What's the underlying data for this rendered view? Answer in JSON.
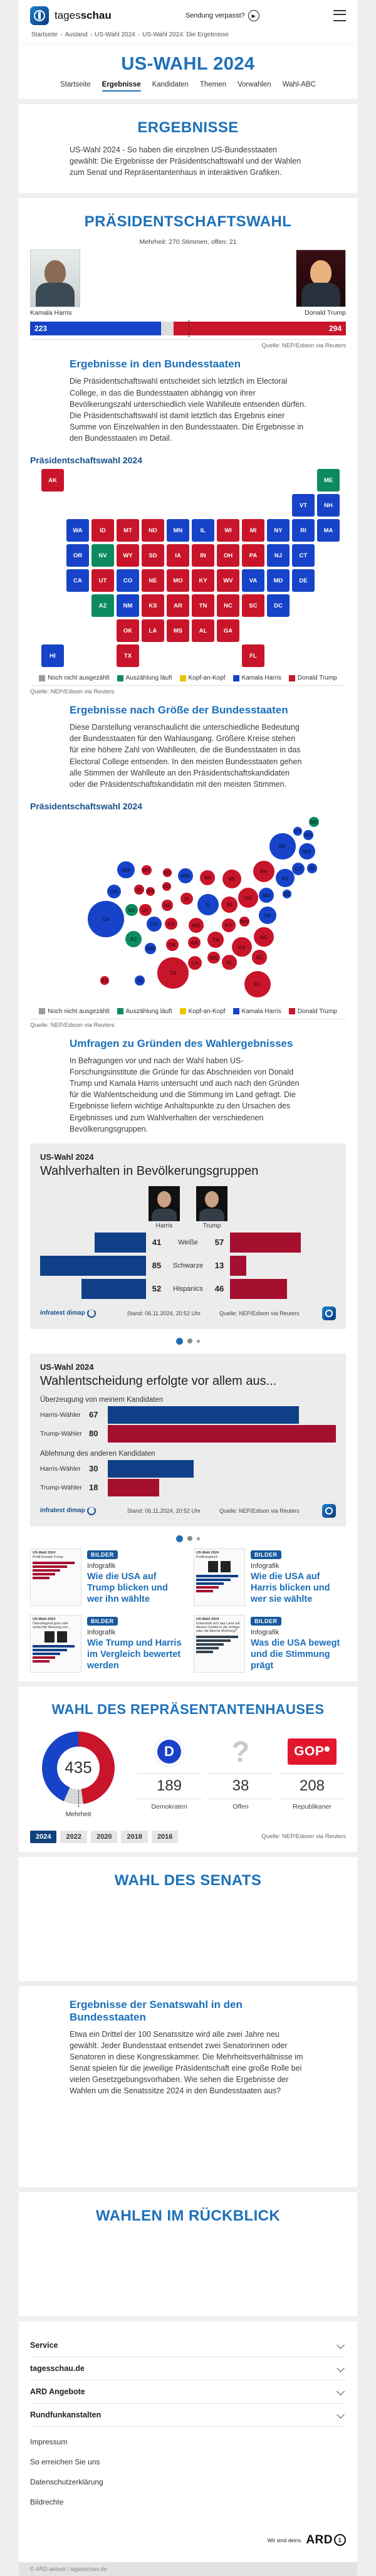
{
  "header": {
    "brand_regular": "tages",
    "brand_bold": "schau",
    "missed_show": "Sendung verpasst?",
    "breadcrumb": [
      "Startseite",
      "Ausland",
      "US-Wahl 2024",
      "US-Wahl 2024: Die Ergebnisse"
    ],
    "page_title": "US-WAHL 2024",
    "tabs": [
      {
        "label": "Startseite",
        "active": false
      },
      {
        "label": "Ergebnisse",
        "active": true
      },
      {
        "label": "Kandidaten",
        "active": false
      },
      {
        "label": "Themen",
        "active": false
      },
      {
        "label": "Vorwahlen",
        "active": false
      },
      {
        "label": "Wahl-ABC",
        "active": false
      }
    ]
  },
  "colors": {
    "harris_blue": "#1643c8",
    "trump_red": "#c8152a",
    "counting_green": "#0d8a60",
    "tossup_yellow": "#ecc500",
    "open_gray": "#9b9b9b",
    "open_segment": "#dcdcdc",
    "info_navy": "#0f3f87",
    "info_dark_red": "#a50f2e",
    "dem_blue": "#1a41c8",
    "gop_red": "#e2172c"
  },
  "results_intro": {
    "title": "ERGEBNISSE",
    "text": "US-Wahl 2024 - So haben die einzelnen US-Bundesstaaten gewählt: Die Ergebnisse der Präsidentschaftswahl und der Wahlen zum Senat und Repräsentantenhaus in interaktiven Grafiken."
  },
  "president": {
    "title": "PRÄSIDENTSCHAFTSWAHL",
    "majority_note": "Mehrheit: 270 Stimmen, offen: 21",
    "harris_name": "Kamala Harris",
    "trump_name": "Donald Trump",
    "source": "Quelle: NEP/Edison via Reuters"
  },
  "states_section": {
    "title": "Ergebnisse in den Bundesstaaten",
    "text": "Die Präsidentschaftswahl entscheidet sich letztlich im Electoral College, in das die Bundesstaaten abhängig von ihrer Bevölkerungszahl unterschiedlich viele Wahlleute entsenden dürfen. Die Präsidentschaftswahl ist damit letztlich das Ergebnis einer Summe von Einzelwahlen in den Bundesstaaten. Die Ergebnisse in den Bundesstaaten im Detail.",
    "chart_title": "Präsidentschaftswahl 2024",
    "source": "Quelle: NEP/Edison via Reuters"
  },
  "cartogram_section": {
    "title": "Ergebnisse nach Größe der Bundesstaaten",
    "text": "Diese Darstellung veranschaulicht die unterschiedliche Bedeutung der Bundesstaaten für den Wahlausgang. Größere Kreise stehen für eine höhere Zahl von Wahlleuten, die die Bundesstaaten in das Electoral College entsenden. In den meisten Bundesstaaten gehen alle Stimmen der Wahlleute an den Präsidentschaftskandidaten oder die Präsidentschaftskandidatin mit den meisten Stimmen.",
    "chart_title": "Präsidentschaftswahl 2024",
    "source": "Quelle: NEP/Edison via Reuters"
  },
  "legend": [
    {
      "label": "Noch nicht ausgezählt",
      "color": "#9b9b9b"
    },
    {
      "label": "Auszählung läuft",
      "color": "#0d8a60"
    },
    {
      "label": "Kopf-an-Kopf",
      "color": "#ecc500"
    },
    {
      "label": "Kamala Harris",
      "color": "#1643c8"
    },
    {
      "label": "Donald Trump",
      "color": "#c8152a"
    }
  ],
  "surveys_section": {
    "title": "Umfragen zu Gründen des Wahlergebnisses",
    "text": "In Befragungen vor und nach der Wahl haben US-Forschungsinstitute die Gründe für das Abschneiden von Donald Trump und Kamala Harris untersucht und auch nach den Gründen für die Wahlentscheidung und die Stimmung im Land gefragt. Die Ergebnisse liefern wichtige Anhaltspunkte zu den Ursachen des Ergebnisses und zum Wahlverhalten der verschiedenen Bevölkerungsgruppen."
  },
  "infographic1": {
    "kicker": "US-Wahl 2024",
    "title": "Wahlverhalten in Bevölkerungsgruppen",
    "harris_label": "Harris",
    "trump_label": "Trump",
    "brand": "infratest dimap",
    "stand": "Stand:  06.11.2024, 20:52 Uhr",
    "source": "Quelle: NEP/Edison via Reuters"
  },
  "infographic2": {
    "kicker": "US-Wahl 2024",
    "title": "Wahlentscheidung erfolgte vor allem aus...",
    "brand": "infratest dimap",
    "stand": "Stand:  06.11.2024, 20:52 Uhr",
    "source": "Quelle: NEP/Edison via Reuters"
  },
  "teasers": [
    {
      "badge": "BILDER",
      "kicker": "Infografik",
      "title": "Wie die USA auf Trump blicken und wer ihn wählte",
      "thumb_kicker": "US-Wahl 2024",
      "thumb_title": "Profil Donald Trump",
      "variant": "bars-red"
    },
    {
      "badge": "BILDER",
      "kicker": "Infografik",
      "title": "Wie die USA auf Harris blicken und wer sie wählte",
      "thumb_kicker": "US-Wahl 2024",
      "thumb_title": "Profilvergleich",
      "variant": "compare"
    },
    {
      "badge": "BILDER",
      "kicker": "Infografik",
      "title": "Wie Trump und Harris im Vergleich bewertet werden",
      "thumb_kicker": "US-Wahl 2024",
      "thumb_title": "Überwiegend gute oder schlechte Meinung von...",
      "variant": "opinion"
    },
    {
      "badge": "BILDER",
      "kicker": "Infografik",
      "title": "Was die USA bewegt und die Stimmung prägt",
      "thumb_kicker": "US-Wahl 2024",
      "thumb_title": "Entwickelt sich das Land auf diesem Gebiet in die richtige oder die falsche Richtung?",
      "variant": "mood"
    }
  ],
  "house": {
    "title": "WAHL DES REPRÄSENTANTENHAUSES",
    "majority_label": "Mehrheit",
    "years": [
      "2024",
      "2022",
      "2020",
      "2018",
      "2016"
    ],
    "active_year": "2024",
    "source": "Quelle: NEP/Edison via Reuters"
  },
  "senate": {
    "title": "WAHL DES SENATS",
    "sub_title": "Ergebnisse der Senatswahl in den Bundesstaaten",
    "text": "Etwa ein Drittel der 100 Senatssitze wird alle zwei Jahre neu gewählt. Jeder Bundesstaat entsendet zwei Senatorinnen oder Senatoren in diese Kongresskammer. Die Mehrheitsverhältnisse im Senat spielen für die jeweilige Präsidentschaft eine große Rolle bei vielen Gesetzgebungsvorhaben. Wie sehen die Ergebnisse der Wahlen um die Senatssitze 2024 in den Bundesstaaten aus?"
  },
  "retrospect": {
    "title": "WAHLEN IM RÜCKBLICK"
  },
  "footer": {
    "accordions": [
      "Service",
      "tagesschau.de",
      "ARD Angebote",
      "Rundfunkanstalten"
    ],
    "links": [
      "Impressum",
      "So erreichen Sie uns",
      "Datenschutzerklärung",
      "Bildrechte"
    ],
    "slogan": "Wir sind deins.",
    "ard": "ARD",
    "copyright": "© ARD-aktuell / tagesschau.de"
  },
  "chart_data": [
    {
      "type": "bar",
      "name": "electoral_college_result",
      "title": "PRÄSIDENTSCHAFTSWAHL",
      "categories": [
        "Kamala Harris",
        "offen",
        "Donald Trump"
      ],
      "values": [
        223,
        21,
        294
      ],
      "total": 538,
      "majority": 270
    },
    {
      "type": "heatmap",
      "name": "state_winner_map",
      "title": "Präsidentschaftswahl 2024",
      "results": {
        "WA": "harris",
        "OR": "harris",
        "CA": "harris",
        "HI": "harris",
        "NV": "counting",
        "ID": "trump",
        "MT": "trump",
        "WY": "trump",
        "UT": "trump",
        "AZ": "counting",
        "CO": "harris",
        "NM": "harris",
        "ND": "trump",
        "SD": "trump",
        "NE": "trump",
        "KS": "trump",
        "OK": "trump",
        "TX": "trump",
        "MN": "harris",
        "IA": "trump",
        "MO": "trump",
        "AR": "trump",
        "LA": "trump",
        "WI": "trump",
        "IL": "harris",
        "MS": "trump",
        "MI": "trump",
        "IN": "trump",
        "OH": "trump",
        "KY": "trump",
        "TN": "trump",
        "AL": "trump",
        "GA": "trump",
        "FL": "trump",
        "PA": "trump",
        "WV": "trump",
        "VA": "harris",
        "NC": "trump",
        "SC": "trump",
        "NY": "harris",
        "NJ": "harris",
        "MD": "harris",
        "DE": "harris",
        "CT": "harris",
        "RI": "harris",
        "MA": "harris",
        "VT": "harris",
        "NH": "harris",
        "ME": "counting",
        "AK": "trump",
        "DC": "harris"
      }
    },
    {
      "type": "scatter",
      "name": "electoral_votes_cartogram",
      "title": "Präsidentschaftswahl 2024",
      "states": [
        {
          "code": "ME",
          "ev": 4,
          "result": "counting"
        },
        {
          "code": "VT",
          "ev": 3,
          "result": "harris"
        },
        {
          "code": "NH",
          "ev": 4,
          "result": "harris"
        },
        {
          "code": "NY",
          "ev": 28,
          "result": "harris"
        },
        {
          "code": "MA",
          "ev": 11,
          "result": "harris"
        },
        {
          "code": "WA",
          "ev": 12,
          "result": "harris"
        },
        {
          "code": "MT",
          "ev": 4,
          "result": "trump"
        },
        {
          "code": "ND",
          "ev": 3,
          "result": "trump"
        },
        {
          "code": "MN",
          "ev": 10,
          "result": "harris"
        },
        {
          "code": "WI",
          "ev": 10,
          "result": "trump"
        },
        {
          "code": "MI",
          "ev": 15,
          "result": "trump"
        },
        {
          "code": "PA",
          "ev": 19,
          "result": "trump"
        },
        {
          "code": "NJ",
          "ev": 14,
          "result": "harris"
        },
        {
          "code": "CT",
          "ev": 7,
          "result": "harris"
        },
        {
          "code": "RI",
          "ev": 4,
          "result": "harris"
        },
        {
          "code": "OR",
          "ev": 8,
          "result": "harris"
        },
        {
          "code": "ID",
          "ev": 4,
          "result": "trump"
        },
        {
          "code": "WY",
          "ev": 3,
          "result": "trump"
        },
        {
          "code": "SD",
          "ev": 3,
          "result": "trump"
        },
        {
          "code": "IA",
          "ev": 6,
          "result": "trump"
        },
        {
          "code": "NE",
          "ev": 5,
          "result": "trump"
        },
        {
          "code": "IL",
          "ev": 19,
          "result": "harris"
        },
        {
          "code": "IN",
          "ev": 11,
          "result": "trump"
        },
        {
          "code": "OH",
          "ev": 17,
          "result": "trump"
        },
        {
          "code": "MD",
          "ev": 10,
          "result": "harris"
        },
        {
          "code": "DE",
          "ev": 3,
          "result": "harris"
        },
        {
          "code": "NV",
          "ev": 6,
          "result": "counting"
        },
        {
          "code": "UT",
          "ev": 6,
          "result": "trump"
        },
        {
          "code": "CA",
          "ev": 54,
          "result": "harris"
        },
        {
          "code": "CO",
          "ev": 10,
          "result": "harris"
        },
        {
          "code": "KS",
          "ev": 6,
          "result": "trump"
        },
        {
          "code": "MO",
          "ev": 10,
          "result": "trump"
        },
        {
          "code": "KY",
          "ev": 8,
          "result": "trump"
        },
        {
          "code": "WV",
          "ev": 4,
          "result": "trump"
        },
        {
          "code": "VA",
          "ev": 13,
          "result": "harris"
        },
        {
          "code": "NC",
          "ev": 16,
          "result": "trump"
        },
        {
          "code": "AZ",
          "ev": 11,
          "result": "counting"
        },
        {
          "code": "NM",
          "ev": 5,
          "result": "harris"
        },
        {
          "code": "OK",
          "ev": 7,
          "result": "trump"
        },
        {
          "code": "AR",
          "ev": 6,
          "result": "trump"
        },
        {
          "code": "TN",
          "ev": 11,
          "result": "trump"
        },
        {
          "code": "GA",
          "ev": 16,
          "result": "trump"
        },
        {
          "code": "SC",
          "ev": 9,
          "result": "trump"
        },
        {
          "code": "MS",
          "ev": 6,
          "result": "trump"
        },
        {
          "code": "AL",
          "ev": 9,
          "result": "trump"
        },
        {
          "code": "LA",
          "ev": 8,
          "result": "trump"
        },
        {
          "code": "TX",
          "ev": 40,
          "result": "trump"
        },
        {
          "code": "AK",
          "ev": 3,
          "result": "trump"
        },
        {
          "code": "HI",
          "ev": 4,
          "result": "harris"
        },
        {
          "code": "FL",
          "ev": 30,
          "result": "trump"
        }
      ]
    },
    {
      "type": "bar",
      "name": "demographics",
      "title": "Wahlverhalten in Bevölkerungsgruppen",
      "categories": [
        "Weiße",
        "Schwarze",
        "Hispanics"
      ],
      "series": [
        {
          "name": "Harris",
          "values": [
            41,
            85,
            52
          ]
        },
        {
          "name": "Trump",
          "values": [
            57,
            13,
            46
          ]
        }
      ],
      "scale_max": 85
    },
    {
      "type": "bar",
      "name": "decision_reasons",
      "title": "Wahlentscheidung erfolgte vor allem aus...",
      "groups": [
        {
          "label": "Überzeugung von meinem Kandidaten",
          "rows": [
            {
              "label": "Harris-Wähler",
              "value": 67,
              "color": "#0f3f87"
            },
            {
              "label": "Trump-Wähler",
              "value": 80,
              "color": "#a50f2e"
            }
          ]
        },
        {
          "label": "Ablehnung des anderen Kandidaten",
          "rows": [
            {
              "label": "Harris-Wähler",
              "value": 30,
              "color": "#0f3f87"
            },
            {
              "label": "Trump-Wähler",
              "value": 18,
              "color": "#a50f2e"
            }
          ]
        }
      ],
      "scale_max": 80
    },
    {
      "type": "donut",
      "name": "house_seats",
      "title": "WAHL DES REPRÄSENTANTENHAUSES",
      "total": 435,
      "parties": [
        {
          "name": "Demokraten",
          "seats": 189,
          "color": "#1643c8",
          "icon": "democrat-d-logo"
        },
        {
          "name": "Offen",
          "seats": 38,
          "color": "#d8d8d8",
          "icon": "question-mark"
        },
        {
          "name": "Republikaner",
          "seats": 208,
          "color": "#c8152a",
          "icon": "gop-logo"
        }
      ]
    }
  ]
}
